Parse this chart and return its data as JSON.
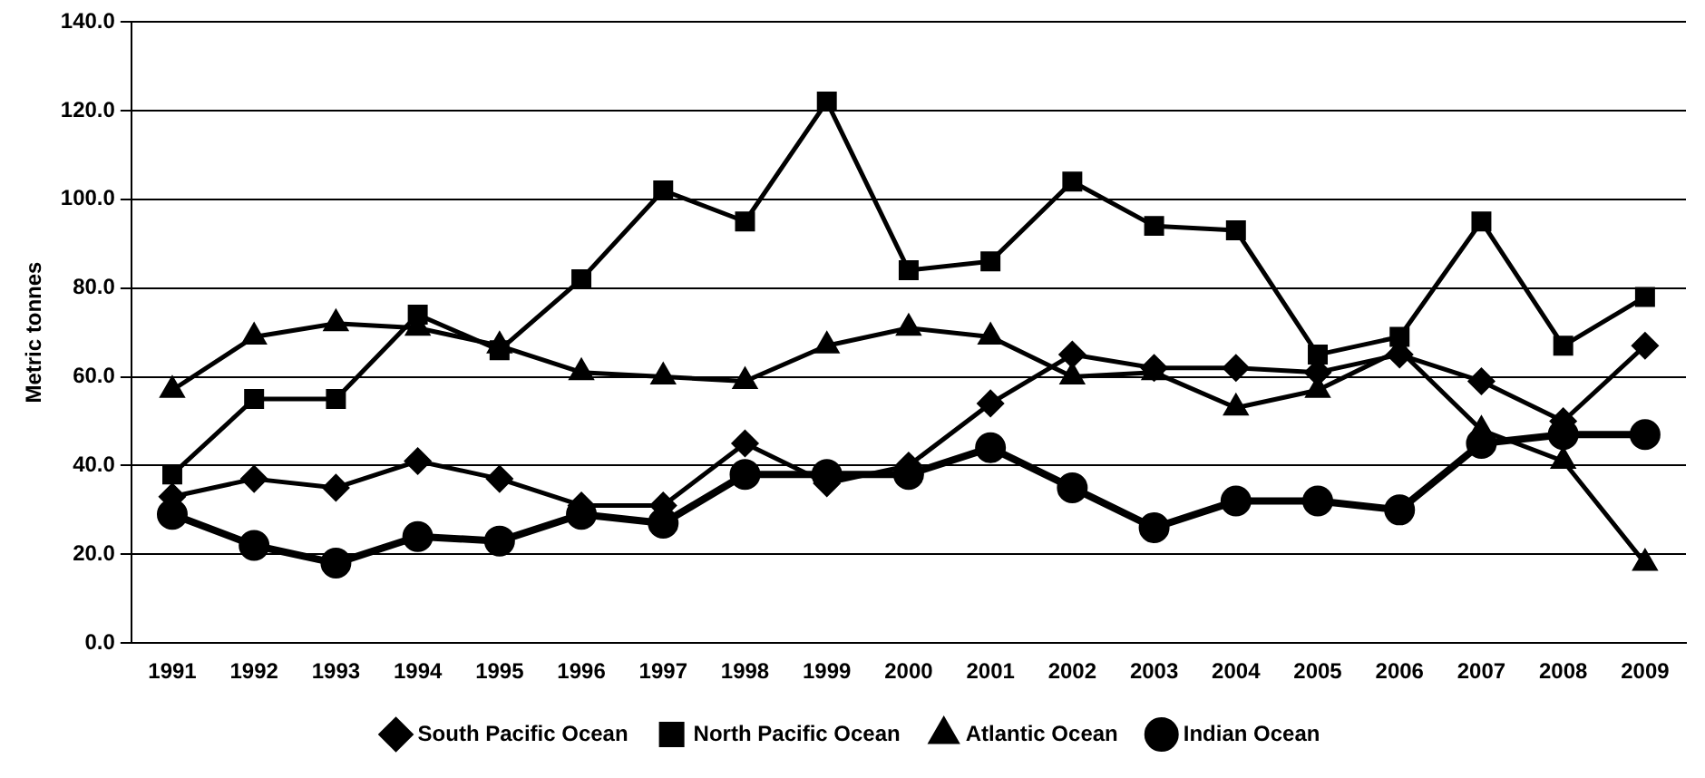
{
  "chart_data": {
    "type": "line",
    "ylabel": "Metric tonnes",
    "categories": [
      "1991",
      "1992",
      "1993",
      "1994",
      "1995",
      "1996",
      "1997",
      "1998",
      "1999",
      "2000",
      "2001",
      "2002",
      "2003",
      "2004",
      "2005",
      "2006",
      "2007",
      "2008",
      "2009"
    ],
    "series": [
      {
        "name": "South Pacific Ocean",
        "color": "#000000",
        "marker": "diamond",
        "values": [
          33,
          37,
          35,
          41,
          37,
          31,
          31,
          45,
          36,
          40,
          54,
          65,
          62,
          62,
          61,
          65,
          59,
          50,
          67
        ]
      },
      {
        "name": "North Pacific Ocean",
        "color": "#000000",
        "marker": "square",
        "values": [
          38,
          55,
          55,
          74,
          66,
          82,
          102,
          95,
          122,
          84,
          86,
          104,
          94,
          93,
          65,
          69,
          95,
          67,
          78
        ]
      },
      {
        "name": "Atlantic Ocean",
        "color": "#000000",
        "marker": "triangle",
        "values": [
          57,
          69,
          72,
          71,
          67,
          61,
          60,
          59,
          67,
          71,
          69,
          60,
          61,
          53,
          57,
          66,
          48,
          41,
          18
        ]
      },
      {
        "name": "Indian Ocean",
        "color": "#000000",
        "marker": "circle",
        "values": [
          29,
          22,
          18,
          24,
          23,
          29,
          27,
          38,
          38,
          38,
          44,
          35,
          26,
          32,
          32,
          30,
          45,
          47,
          47
        ]
      }
    ],
    "ylim": [
      0,
      140
    ],
    "yticks": [
      {
        "value": 0,
        "label": "0.0"
      },
      {
        "value": 20,
        "label": "20.0"
      },
      {
        "value": 40,
        "label": "40.0"
      },
      {
        "value": 60,
        "label": "60.0"
      },
      {
        "value": 80,
        "label": "80.0"
      },
      {
        "value": 100,
        "label": "100.0"
      },
      {
        "value": 120,
        "label": "120.0"
      },
      {
        "value": 140,
        "label": "140.0"
      }
    ],
    "grid": "y",
    "legend": "bottom",
    "line_style": "solid"
  }
}
